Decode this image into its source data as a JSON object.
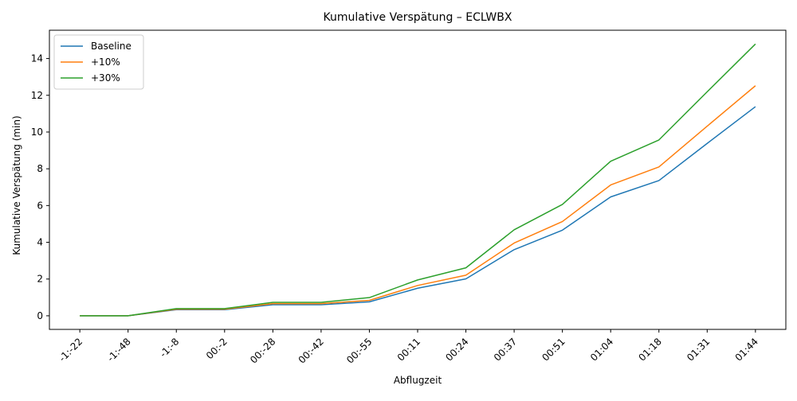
{
  "chart_data": {
    "type": "line",
    "title": "Kumulative Verspätung – ECLWBX",
    "xlabel": "Abflugzeit",
    "ylabel": "Kumulative Verspätung (min)",
    "categories": [
      "-1:-22",
      "-1:-48",
      "-1:-8",
      "00:-2",
      "00:-28",
      "00:-42",
      "00:-55",
      "00:11",
      "00:24",
      "00:37",
      "00:51",
      "01:04",
      "01:18",
      "01:31",
      "01:44"
    ],
    "ylim": [
      -0.74,
      15.54
    ],
    "yticks": [
      0,
      2,
      4,
      6,
      8,
      10,
      12,
      14
    ],
    "grid": false,
    "legend_position": "top-left",
    "series": [
      {
        "name": "Baseline",
        "color": "#1f77b4",
        "values": [
          0,
          0,
          0.33,
          0.33,
          0.6,
          0.6,
          0.76,
          1.5,
          2.01,
          3.6,
          4.66,
          6.47,
          7.36,
          9.38,
          11.38
        ]
      },
      {
        "name": "+10%",
        "color": "#ff7f0e",
        "values": [
          0,
          0,
          0.36,
          0.36,
          0.66,
          0.66,
          0.84,
          1.65,
          2.21,
          3.96,
          5.13,
          7.12,
          8.1,
          10.32,
          12.52
        ]
      },
      {
        "name": "+30%",
        "color": "#2ca02c",
        "values": [
          0,
          0,
          0.39,
          0.39,
          0.73,
          0.73,
          0.99,
          1.95,
          2.61,
          4.68,
          6.06,
          8.41,
          9.57,
          12.19,
          14.79
        ]
      }
    ]
  }
}
